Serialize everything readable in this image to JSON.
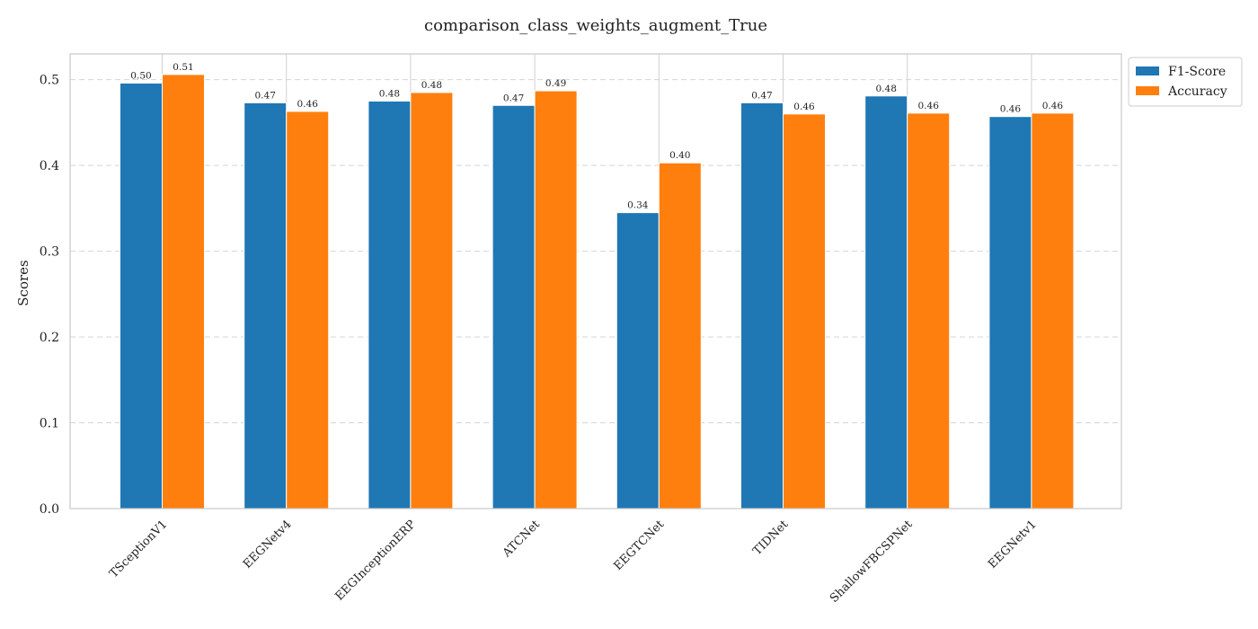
{
  "chart_data": {
    "type": "bar",
    "title": "comparison_class_weights_augment_True",
    "xlabel": "",
    "ylabel": "Scores",
    "ylim": [
      0,
      0.53
    ],
    "yticks": [
      "0.0",
      "0.1",
      "0.2",
      "0.3",
      "0.4",
      "0.5"
    ],
    "grid": true,
    "legend_position": "upper-right-outside",
    "categories": [
      "TSceptionV1",
      "EEGNetv4",
      "EEGInceptionERP",
      "ATCNet",
      "EEGTCNet",
      "TIDNet",
      "ShallowFBCSPNet",
      "EEGNetv1"
    ],
    "series": [
      {
        "name": "F1-Score",
        "color": "#1f77b4",
        "values": [
          0.496,
          0.473,
          0.475,
          0.47,
          0.345,
          0.473,
          0.481,
          0.457
        ],
        "labels": [
          "0.50",
          "0.47",
          "0.48",
          "0.47",
          "0.34",
          "0.47",
          "0.48",
          "0.46"
        ]
      },
      {
        "name": "Accuracy",
        "color": "#ff7f0e",
        "values": [
          0.506,
          0.463,
          0.485,
          0.487,
          0.403,
          0.46,
          0.461,
          0.461
        ],
        "labels": [
          "0.51",
          "0.46",
          "0.48",
          "0.49",
          "0.40",
          "0.46",
          "0.46",
          "0.46"
        ]
      }
    ]
  }
}
